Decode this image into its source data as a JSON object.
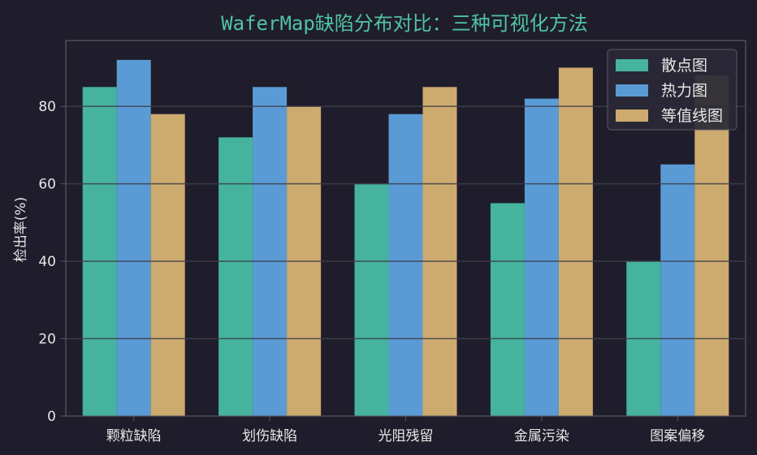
{
  "chart_data": {
    "type": "bar",
    "title": "WaferMap缺陷分布对比：三种可视化方法",
    "xlabel": "",
    "ylabel": "检出率(%)",
    "ylim": [
      0,
      97
    ],
    "yticks": [
      0,
      20,
      40,
      60,
      80
    ],
    "grid": true,
    "legend_position": "top-right",
    "categories": [
      "颗粒缺陷",
      "划伤缺陷",
      "光阻残留",
      "金属污染",
      "图案偏移"
    ],
    "series": [
      {
        "name": "散点图",
        "color": "#45b39d",
        "values": [
          85,
          72,
          60,
          55,
          40
        ]
      },
      {
        "name": "热力图",
        "color": "#5b9bd5",
        "values": [
          92,
          85,
          78,
          82,
          65
        ]
      },
      {
        "name": "等值线图",
        "color": "#cdab6e",
        "values": [
          78,
          80,
          85,
          90,
          88
        ]
      }
    ]
  },
  "colors": {
    "background": "#1f1d2b",
    "title": "#4fc3a1",
    "grid": "#3a3a48",
    "axes": "#5a5a66",
    "text": "#e6e6e6"
  }
}
